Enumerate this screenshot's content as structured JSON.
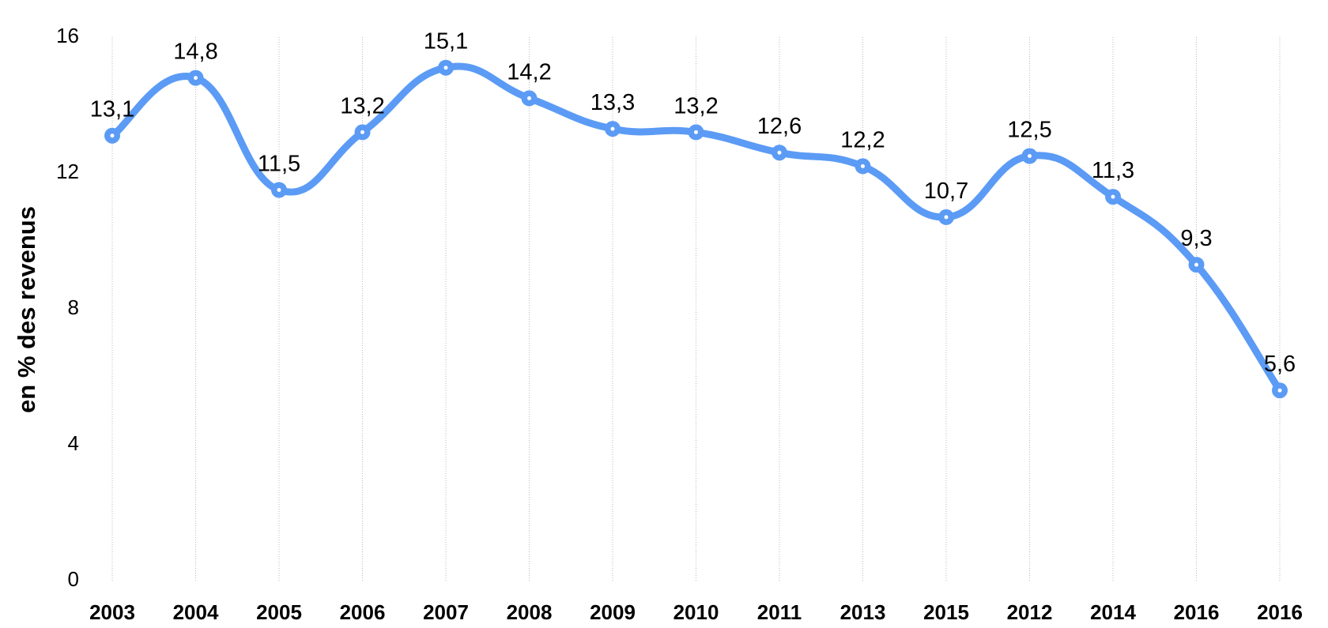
{
  "chart_data": {
    "type": "line",
    "title": "",
    "xlabel": "",
    "ylabel": "en % des revenus",
    "categories": [
      "2003",
      "2004",
      "2005",
      "2006",
      "2007",
      "2008",
      "2009",
      "2010",
      "2011",
      "2013",
      "2015",
      "2012",
      "2014",
      "2016",
      "2016"
    ],
    "series": [
      {
        "values": [
          13.1,
          14.8,
          11.5,
          13.2,
          15.1,
          14.2,
          13.3,
          13.2,
          12.6,
          12.2,
          10.7,
          12.5,
          11.3,
          9.3,
          5.6
        ],
        "labels": [
          "13,1",
          "14,8",
          "11,5",
          "13,2",
          "15,1",
          "14,2",
          "13,3",
          "13,2",
          "12,6",
          "12,2",
          "10,7",
          "12,5",
          "11,3",
          "9,3",
          "5,6"
        ],
        "color": "#5b9bf5"
      }
    ],
    "yticks": [
      "0",
      "4",
      "8",
      "12",
      "16"
    ],
    "ylim": [
      0,
      16
    ],
    "grid": "vertical dotted",
    "legend": "none"
  }
}
